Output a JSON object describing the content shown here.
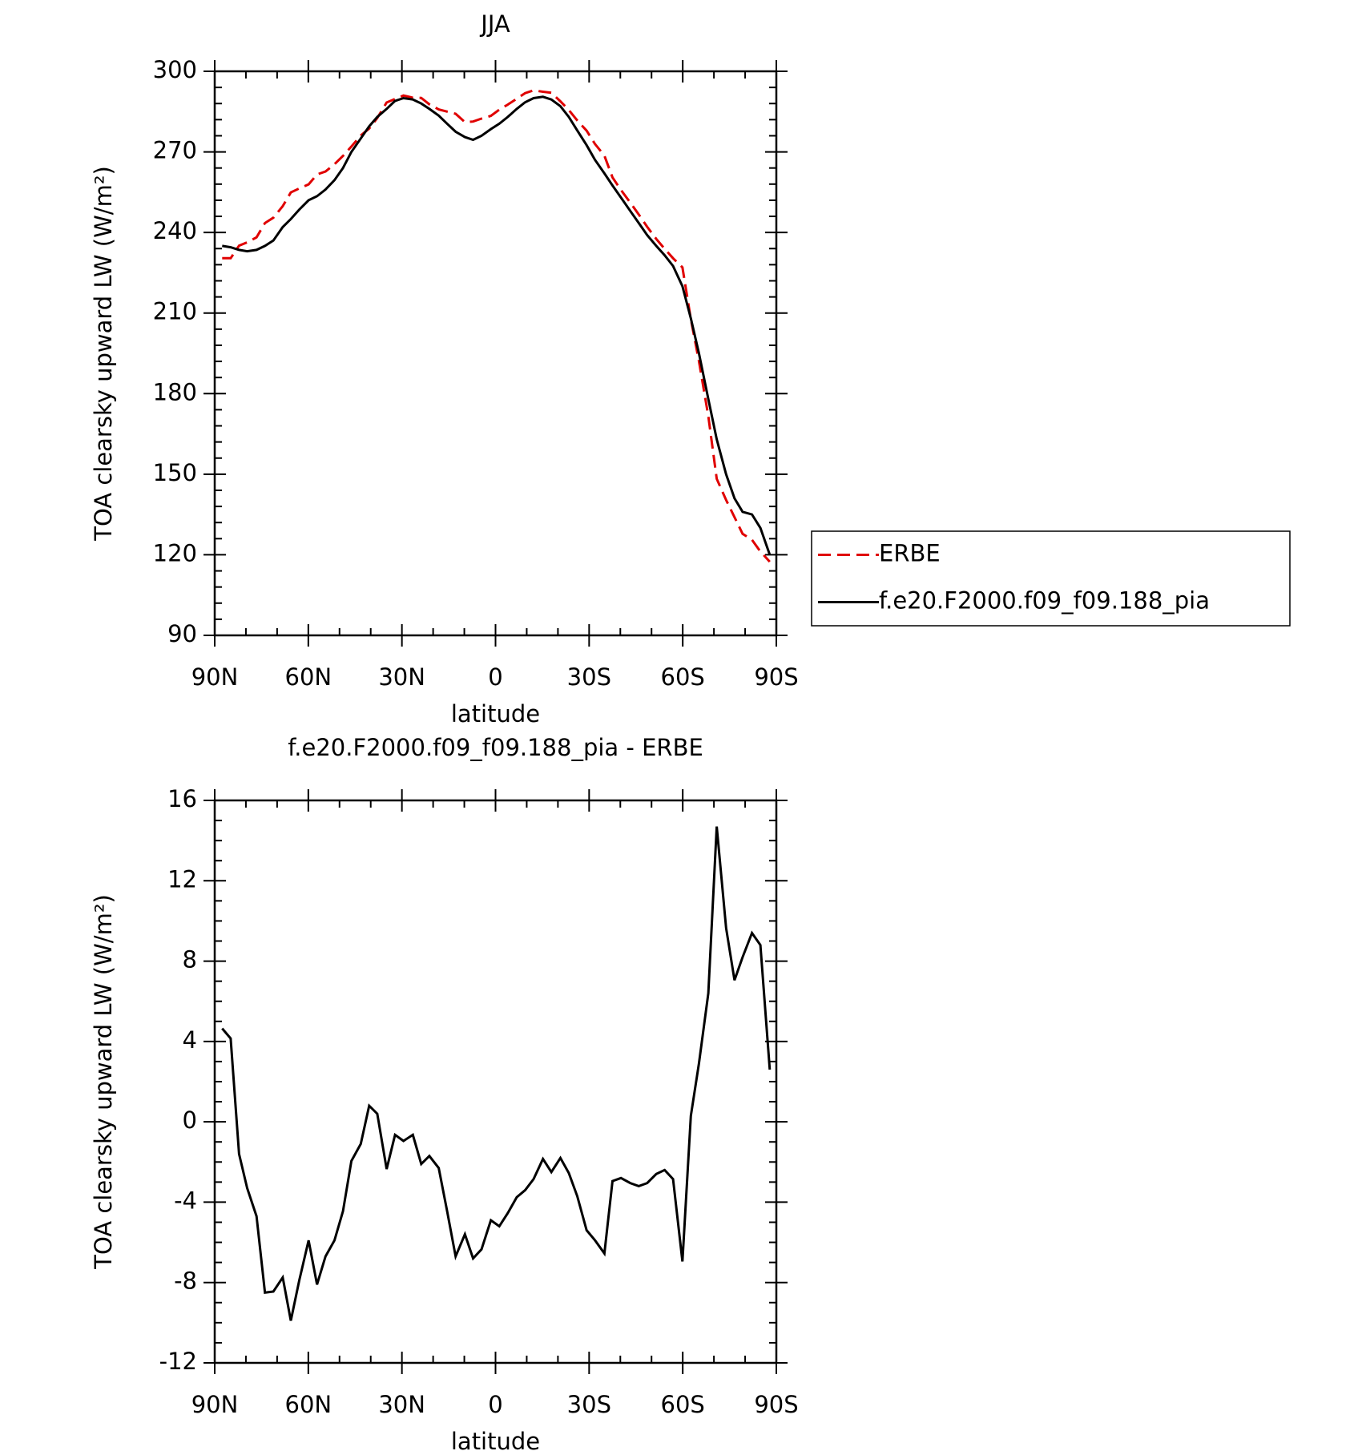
{
  "chart_data": [
    {
      "type": "line",
      "title": "JJA",
      "xlabel": "latitude",
      "ylabel": "TOA clearsky upward LW (W/m²)",
      "x": [
        87.6,
        84.9,
        82.2,
        79.6,
        76.6,
        73.9,
        71.2,
        68.2,
        65.6,
        62.9,
        59.9,
        57.2,
        54.5,
        51.6,
        48.9,
        46.2,
        43.2,
        40.5,
        37.9,
        34.9,
        32.2,
        29.5,
        26.5,
        23.8,
        21.2,
        18.2,
        15.5,
        12.8,
        9.8,
        7.2,
        4.5,
        1.5,
        -1.2,
        -3.9,
        -6.8,
        -9.5,
        -12.2,
        -15.2,
        -17.9,
        -20.8,
        -23.5,
        -26.2,
        -29.2,
        -31.9,
        -34.9,
        -37.5,
        -40.2,
        -43.2,
        -45.9,
        -48.6,
        -51.5,
        -54.2,
        -56.9,
        -59.9,
        -62.6,
        -65.2,
        -68.2,
        -70.9,
        -73.9,
        -76.6,
        -79.2,
        -82.2,
        -84.9,
        -87.9
      ],
      "series": [
        {
          "name": "ERBE",
          "color": "#e00000",
          "dashed": true,
          "values": [
            230.4,
            230.4,
            235.1,
            236.3,
            238.2,
            243.5,
            245.5,
            249.8,
            254.9,
            256.4,
            257.9,
            261.6,
            262.7,
            265.4,
            268.5,
            272,
            276.1,
            278.7,
            282.6,
            288.4,
            289.7,
            291,
            290.2,
            290.1,
            287.7,
            285.8,
            285,
            284.2,
            281.1,
            281.3,
            282.4,
            283.4,
            285.7,
            287.6,
            289.8,
            291.9,
            292.9,
            292.4,
            292,
            288.8,
            285.6,
            281.7,
            277.9,
            272.9,
            268.6,
            260.5,
            255.8,
            251.1,
            246.7,
            242.1,
            237.6,
            233.9,
            230.4,
            227,
            207.7,
            192.1,
            171.6,
            148.3,
            140.4,
            134,
            127.8,
            125.6,
            121.2,
            117.4
          ]
        },
        {
          "name": "f.e20.F2000.f09_f09.188_pia",
          "color": "#000000",
          "dashed": false,
          "values": [
            235,
            234.5,
            233.5,
            233,
            233.5,
            235,
            237,
            242,
            245,
            248.5,
            252,
            253.5,
            256,
            259.5,
            264,
            270,
            275,
            279.5,
            283,
            286,
            289,
            290,
            289.5,
            288,
            286,
            283.5,
            280.5,
            277.5,
            275.5,
            274.5,
            276,
            278.5,
            280.5,
            283,
            286,
            288.5,
            290,
            290.5,
            289.5,
            287,
            283,
            278,
            272.5,
            267,
            262,
            257.5,
            253,
            248,
            243.5,
            239,
            235,
            231.5,
            227.5,
            220,
            208,
            195,
            178,
            163,
            150,
            141,
            136,
            135,
            130,
            120
          ]
        }
      ],
      "xlim": [
        90,
        -90
      ],
      "xticks": [
        {
          "value": 90,
          "label": "90N"
        },
        {
          "value": 60,
          "label": "60N"
        },
        {
          "value": 30,
          "label": "30N"
        },
        0,
        {
          "value": -30,
          "label": "30S"
        },
        {
          "value": -60,
          "label": "60S"
        },
        {
          "value": -90,
          "label": "90S"
        }
      ],
      "ylim": [
        90,
        300
      ],
      "yticks": [
        90,
        120,
        150,
        180,
        210,
        240,
        270,
        300
      ],
      "legend": "outside right"
    },
    {
      "type": "line",
      "title": "f.e20.F2000.f09_f09.188_pia - ERBE",
      "xlabel": "latitude",
      "ylabel": "TOA clearsky upward LW (W/m²)",
      "x": [
        87.6,
        84.9,
        82.2,
        79.6,
        76.6,
        73.9,
        71.2,
        68.2,
        65.6,
        62.9,
        59.9,
        57.2,
        54.5,
        51.6,
        48.9,
        46.2,
        43.2,
        40.5,
        37.9,
        34.9,
        32.2,
        29.5,
        26.5,
        23.8,
        21.2,
        18.2,
        15.5,
        12.8,
        9.8,
        7.2,
        4.5,
        1.5,
        -1.2,
        -3.9,
        -6.8,
        -9.5,
        -12.2,
        -15.2,
        -17.9,
        -20.8,
        -23.5,
        -26.2,
        -29.2,
        -31.9,
        -34.9,
        -37.5,
        -40.2,
        -43.2,
        -45.9,
        -48.6,
        -51.5,
        -54.2,
        -56.9,
        -59.9,
        -62.6,
        -65.2,
        -68.2,
        -70.9,
        -73.9,
        -76.6,
        -79.2,
        -82.2,
        -84.9,
        -87.9
      ],
      "series": [
        {
          "color": "#000000",
          "dashed": false,
          "values": [
            4.65,
            4.15,
            -1.6,
            -3.3,
            -4.7,
            -8.5,
            -8.45,
            -7.75,
            -9.9,
            -7.9,
            -5.9,
            -8.1,
            -6.7,
            -5.9,
            -4.45,
            -1.95,
            -1.1,
            0.8,
            0.4,
            -2.35,
            -0.65,
            -0.95,
            -0.65,
            -2.1,
            -1.7,
            -2.3,
            -4.45,
            -6.7,
            -5.6,
            -6.8,
            -6.35,
            -4.9,
            -5.2,
            -4.55,
            -3.75,
            -3.4,
            -2.85,
            -1.85,
            -2.5,
            -1.8,
            -2.55,
            -3.7,
            -5.4,
            -5.9,
            -6.55,
            -2.95,
            -2.8,
            -3.05,
            -3.2,
            -3.05,
            -2.6,
            -2.4,
            -2.85,
            -6.95,
            0.3,
            2.9,
            6.4,
            14.7,
            9.65,
            7.05,
            8.2,
            9.4,
            8.8,
            2.6
          ]
        }
      ],
      "xlim": [
        90,
        -90
      ],
      "xticks": [
        {
          "value": 90,
          "label": "90N"
        },
        {
          "value": 60,
          "label": "60N"
        },
        {
          "value": 30,
          "label": "30N"
        },
        0,
        {
          "value": -30,
          "label": "30S"
        },
        {
          "value": -60,
          "label": "60S"
        },
        {
          "value": -90,
          "label": "90S"
        }
      ],
      "ylim": [
        -12,
        16
      ],
      "yticks": [
        -12,
        -8,
        -4,
        0,
        4,
        8,
        12,
        16
      ]
    }
  ]
}
